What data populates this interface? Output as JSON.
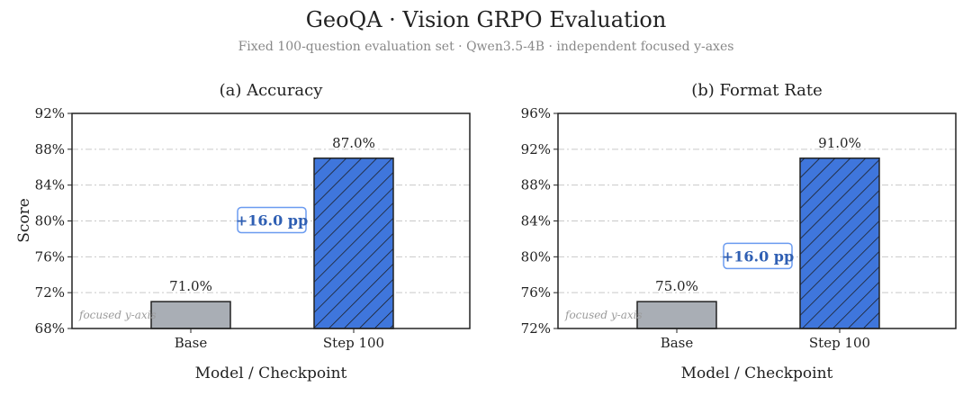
{
  "figure": {
    "title": "GeoQA · Vision GRPO Evaluation",
    "subtitle": "Fixed 100-question evaluation set · Qwen3.5-4B · independent focused y-axes"
  },
  "chart_data": [
    {
      "type": "bar",
      "panel_title": "(a) Accuracy",
      "xlabel": "Model / Checkpoint",
      "ylabel": "Score",
      "ylim": [
        68,
        92
      ],
      "yticks": [
        68,
        72,
        76,
        80,
        84,
        88,
        92
      ],
      "y_format": "percent",
      "grid": "horizontal dashed",
      "categories": [
        "Base",
        "Step 100"
      ],
      "values": [
        71.0,
        87.0
      ],
      "value_labels": [
        "71.0%",
        "87.0%"
      ],
      "bar_colors": [
        "#a9aeb5",
        "#3f76dc"
      ],
      "bar_hatch": [
        false,
        true
      ],
      "delta_label": "+16.0 pp",
      "axis_note": "focused y-axis"
    },
    {
      "type": "bar",
      "panel_title": "(b) Format Rate",
      "xlabel": "Model / Checkpoint",
      "ylabel": "",
      "ylim": [
        72,
        96
      ],
      "yticks": [
        72,
        76,
        80,
        84,
        88,
        92,
        96
      ],
      "y_format": "percent",
      "grid": "horizontal dashed",
      "categories": [
        "Base",
        "Step 100"
      ],
      "values": [
        75.0,
        91.0
      ],
      "value_labels": [
        "75.0%",
        "91.0%"
      ],
      "bar_colors": [
        "#a9aeb5",
        "#3f76dc"
      ],
      "bar_hatch": [
        false,
        true
      ],
      "delta_label": "+16.0 pp",
      "axis_note": "focused y-axis"
    }
  ],
  "colors": {
    "accent": "#2f5fb3",
    "delta_border": "#6b9bf0",
    "note": "#9b9b9b"
  }
}
